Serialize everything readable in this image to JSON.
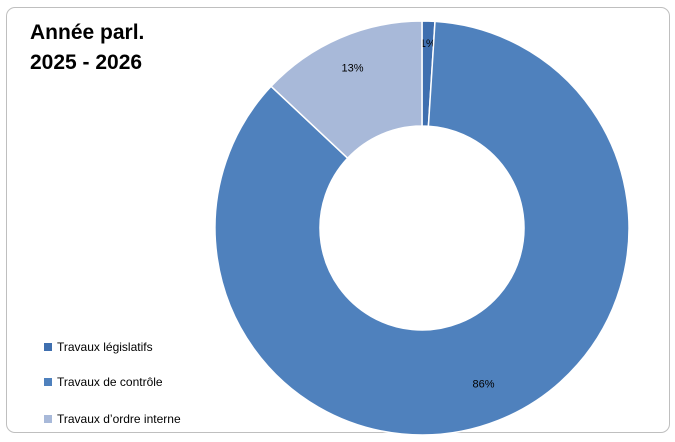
{
  "chart_data": {
    "type": "pie",
    "variant": "donut",
    "title_lines": [
      "Année parl.",
      "2025 - 2026"
    ],
    "categories": [
      "Travaux législatifs",
      "Travaux de contrôle",
      "Travaux d’ordre interne"
    ],
    "values": [
      1,
      86,
      13
    ],
    "data_labels": [
      "1%",
      "86%",
      "13%"
    ],
    "colors": [
      "#3F6FAF",
      "#4F81BD",
      "#A8B9D9"
    ],
    "legend_position": "bottom-left"
  }
}
